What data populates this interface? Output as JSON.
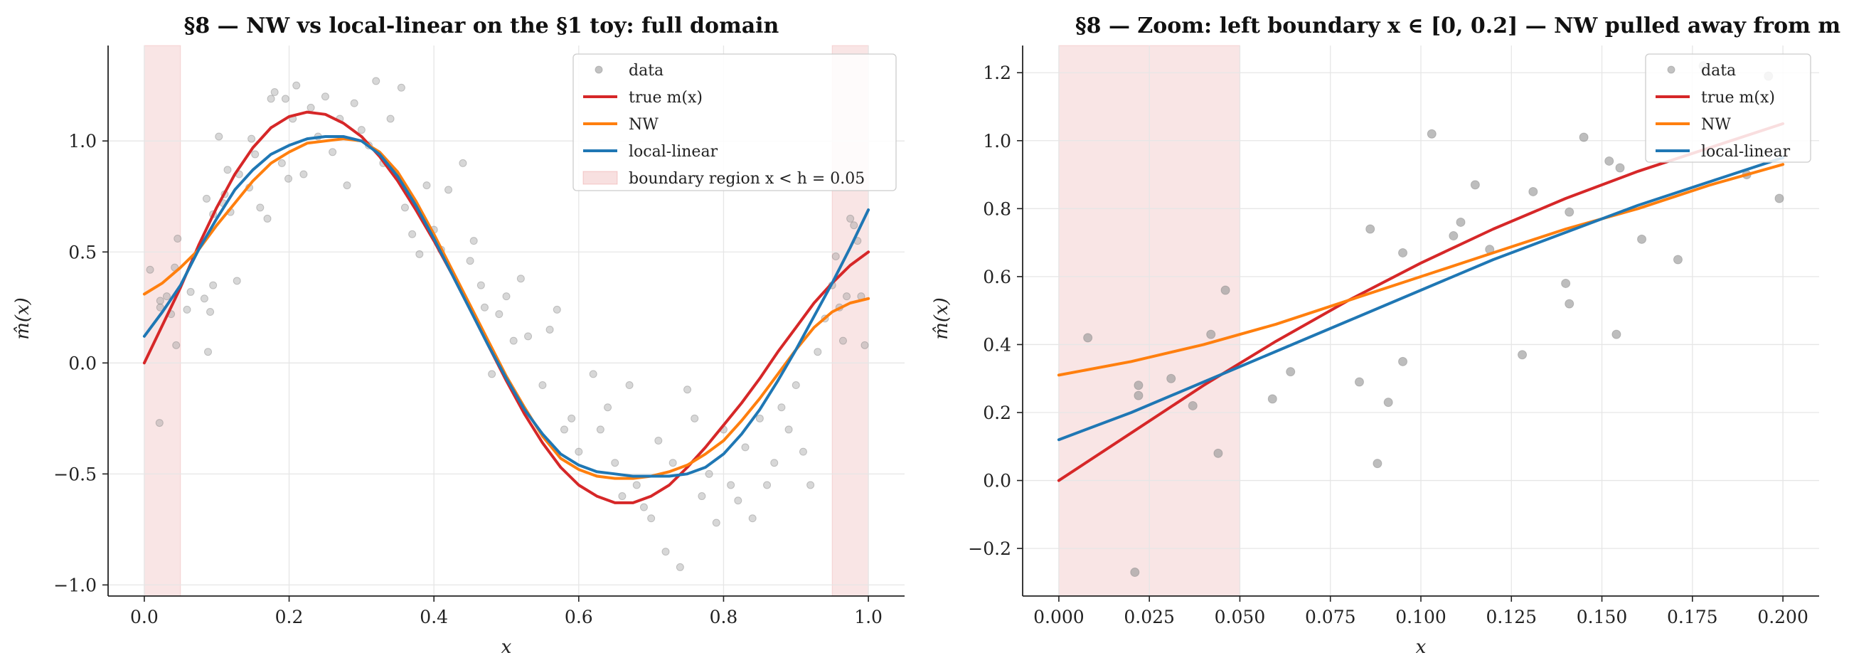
{
  "figure": {
    "colors": {
      "data": "#9a9a9a",
      "true": "#d62728",
      "nw": "#ff7f0e",
      "ll": "#1f77b4",
      "boundary": "#f4cccc",
      "grid": "#e6e6e6"
    }
  },
  "legend": {
    "data": "data",
    "true": "true m(x)",
    "nw": "NW",
    "ll": "local-linear",
    "boundary": "boundary region x < h = 0.05"
  },
  "chart_data": [
    {
      "type": "scatter",
      "title": "§8 — NW vs local-linear on the §1 toy: full domain",
      "xlabel": "x",
      "ylabel": "m̂(x)",
      "xlim": [
        -0.05,
        1.05
      ],
      "ylim": [
        -1.05,
        1.43
      ],
      "xticks": [
        "0.0",
        "0.2",
        "0.4",
        "0.6",
        "0.8",
        "1.0"
      ],
      "yticks": [
        "−1.0",
        "−0.5",
        "0.0",
        "0.5",
        "1.0"
      ],
      "grid": true,
      "legend_position": "top-right",
      "boundary_regions": [
        [
          0.0,
          0.05
        ],
        [
          0.95,
          1.0
        ]
      ],
      "series": [
        {
          "name": "data",
          "kind": "points",
          "points": [
            [
              0.008,
              0.42
            ],
            [
              0.021,
              -0.27
            ],
            [
              0.022,
              0.28
            ],
            [
              0.022,
              0.25
            ],
            [
              0.031,
              0.3
            ],
            [
              0.037,
              0.22
            ],
            [
              0.042,
              0.43
            ],
            [
              0.044,
              0.08
            ],
            [
              0.046,
              0.56
            ],
            [
              0.059,
              0.24
            ],
            [
              0.064,
              0.32
            ],
            [
              0.083,
              0.29
            ],
            [
              0.086,
              0.74
            ],
            [
              0.088,
              0.05
            ],
            [
              0.091,
              0.23
            ],
            [
              0.095,
              0.67
            ],
            [
              0.095,
              0.35
            ],
            [
              0.103,
              1.02
            ],
            [
              0.109,
              0.72
            ],
            [
              0.111,
              0.76
            ],
            [
              0.115,
              0.87
            ],
            [
              0.119,
              0.68
            ],
            [
              0.128,
              0.37
            ],
            [
              0.131,
              0.85
            ],
            [
              0.145,
              0.79
            ],
            [
              0.148,
              1.01
            ],
            [
              0.153,
              0.94
            ],
            [
              0.16,
              0.7
            ],
            [
              0.17,
              0.65
            ],
            [
              0.175,
              1.19
            ],
            [
              0.18,
              1.22
            ],
            [
              0.19,
              0.9
            ],
            [
              0.195,
              1.19
            ],
            [
              0.199,
              0.83
            ],
            [
              0.205,
              1.1
            ],
            [
              0.21,
              1.25
            ],
            [
              0.22,
              0.85
            ],
            [
              0.23,
              1.15
            ],
            [
              0.24,
              1.02
            ],
            [
              0.25,
              1.2
            ],
            [
              0.26,
              0.95
            ],
            [
              0.27,
              1.1
            ],
            [
              0.28,
              0.8
            ],
            [
              0.29,
              1.17
            ],
            [
              0.3,
              1.05
            ],
            [
              0.31,
              0.98
            ],
            [
              0.32,
              1.27
            ],
            [
              0.33,
              0.9
            ],
            [
              0.34,
              1.1
            ],
            [
              0.355,
              1.24
            ],
            [
              0.36,
              0.7
            ],
            [
              0.37,
              0.58
            ],
            [
              0.38,
              0.49
            ],
            [
              0.39,
              0.8
            ],
            [
              0.4,
              0.6
            ],
            [
              0.41,
              0.51
            ],
            [
              0.42,
              0.78
            ],
            [
              0.44,
              0.9
            ],
            [
              0.45,
              0.46
            ],
            [
              0.455,
              0.55
            ],
            [
              0.465,
              0.35
            ],
            [
              0.47,
              0.25
            ],
            [
              0.48,
              -0.05
            ],
            [
              0.49,
              0.22
            ],
            [
              0.5,
              0.3
            ],
            [
              0.51,
              0.1
            ],
            [
              0.52,
              0.38
            ],
            [
              0.53,
              0.12
            ],
            [
              0.55,
              -0.1
            ],
            [
              0.56,
              0.15
            ],
            [
              0.57,
              0.24
            ],
            [
              0.58,
              -0.3
            ],
            [
              0.59,
              -0.25
            ],
            [
              0.6,
              -0.4
            ],
            [
              0.62,
              -0.05
            ],
            [
              0.63,
              -0.3
            ],
            [
              0.64,
              -0.2
            ],
            [
              0.65,
              -0.45
            ],
            [
              0.66,
              -0.6
            ],
            [
              0.67,
              -0.1
            ],
            [
              0.68,
              -0.55
            ],
            [
              0.69,
              -0.65
            ],
            [
              0.7,
              -0.7
            ],
            [
              0.71,
              -0.35
            ],
            [
              0.72,
              -0.85
            ],
            [
              0.73,
              -0.45
            ],
            [
              0.74,
              -0.92
            ],
            [
              0.75,
              -0.12
            ],
            [
              0.76,
              -0.25
            ],
            [
              0.77,
              -0.6
            ],
            [
              0.78,
              -0.5
            ],
            [
              0.79,
              -0.72
            ],
            [
              0.8,
              -0.3
            ],
            [
              0.81,
              -0.55
            ],
            [
              0.82,
              -0.62
            ],
            [
              0.83,
              -0.38
            ],
            [
              0.84,
              -0.7
            ],
            [
              0.85,
              -0.25
            ],
            [
              0.86,
              -0.55
            ],
            [
              0.87,
              -0.45
            ],
            [
              0.88,
              -0.2
            ],
            [
              0.89,
              -0.3
            ],
            [
              0.9,
              -0.1
            ],
            [
              0.91,
              -0.4
            ],
            [
              0.92,
              -0.55
            ],
            [
              0.93,
              0.05
            ],
            [
              0.94,
              0.2
            ],
            [
              0.95,
              0.35
            ],
            [
              0.955,
              0.48
            ],
            [
              0.96,
              0.25
            ],
            [
              0.965,
              0.1
            ],
            [
              0.97,
              0.3
            ],
            [
              0.975,
              0.65
            ],
            [
              0.98,
              0.62
            ],
            [
              0.985,
              0.55
            ],
            [
              0.99,
              0.3
            ],
            [
              0.995,
              0.08
            ]
          ]
        },
        {
          "name": "true m(x)",
          "kind": "line",
          "x": [
            0,
            0.025,
            0.05,
            0.075,
            0.1,
            0.125,
            0.15,
            0.175,
            0.2,
            0.225,
            0.25,
            0.275,
            0.3,
            0.325,
            0.35,
            0.375,
            0.4,
            0.425,
            0.45,
            0.475,
            0.5,
            0.525,
            0.55,
            0.575,
            0.6,
            0.625,
            0.65,
            0.675,
            0.7,
            0.725,
            0.75,
            0.775,
            0.8,
            0.825,
            0.85,
            0.875,
            0.9,
            0.925,
            0.95,
            0.975,
            1.0
          ],
          "y": [
            0.0,
            0.17,
            0.34,
            0.53,
            0.7,
            0.85,
            0.97,
            1.06,
            1.11,
            1.13,
            1.12,
            1.08,
            1.02,
            0.93,
            0.82,
            0.69,
            0.55,
            0.4,
            0.24,
            0.08,
            -0.08,
            -0.23,
            -0.36,
            -0.47,
            -0.55,
            -0.6,
            -0.63,
            -0.63,
            -0.6,
            -0.55,
            -0.47,
            -0.38,
            -0.28,
            -0.18,
            -0.07,
            0.05,
            0.16,
            0.27,
            0.36,
            0.44,
            0.5
          ]
        },
        {
          "name": "NW",
          "kind": "line",
          "x": [
            0,
            0.025,
            0.05,
            0.075,
            0.1,
            0.125,
            0.15,
            0.175,
            0.2,
            0.225,
            0.25,
            0.275,
            0.3,
            0.325,
            0.35,
            0.375,
            0.4,
            0.425,
            0.45,
            0.475,
            0.5,
            0.525,
            0.55,
            0.575,
            0.6,
            0.625,
            0.65,
            0.675,
            0.7,
            0.725,
            0.75,
            0.775,
            0.8,
            0.825,
            0.85,
            0.875,
            0.9,
            0.925,
            0.95,
            0.975,
            1.0
          ],
          "y": [
            0.31,
            0.36,
            0.43,
            0.51,
            0.62,
            0.72,
            0.82,
            0.9,
            0.95,
            0.99,
            1.0,
            1.01,
            1.0,
            0.95,
            0.86,
            0.73,
            0.58,
            0.42,
            0.26,
            0.1,
            -0.06,
            -0.2,
            -0.33,
            -0.43,
            -0.48,
            -0.51,
            -0.52,
            -0.52,
            -0.51,
            -0.49,
            -0.46,
            -0.41,
            -0.35,
            -0.26,
            -0.16,
            -0.05,
            0.06,
            0.16,
            0.23,
            0.27,
            0.29
          ]
        },
        {
          "name": "local-linear",
          "kind": "line",
          "x": [
            0,
            0.025,
            0.05,
            0.075,
            0.1,
            0.125,
            0.15,
            0.175,
            0.2,
            0.225,
            0.25,
            0.275,
            0.3,
            0.325,
            0.35,
            0.375,
            0.4,
            0.425,
            0.45,
            0.475,
            0.5,
            0.525,
            0.55,
            0.575,
            0.6,
            0.625,
            0.65,
            0.675,
            0.7,
            0.725,
            0.75,
            0.775,
            0.8,
            0.825,
            0.85,
            0.875,
            0.9,
            0.925,
            0.95,
            0.975,
            1.0
          ],
          "y": [
            0.12,
            0.23,
            0.35,
            0.51,
            0.65,
            0.78,
            0.87,
            0.94,
            0.98,
            1.01,
            1.02,
            1.02,
            1.0,
            0.94,
            0.84,
            0.71,
            0.56,
            0.4,
            0.24,
            0.08,
            -0.07,
            -0.21,
            -0.32,
            -0.41,
            -0.46,
            -0.49,
            -0.5,
            -0.51,
            -0.51,
            -0.51,
            -0.5,
            -0.47,
            -0.41,
            -0.32,
            -0.21,
            -0.08,
            0.06,
            0.21,
            0.36,
            0.52,
            0.69
          ]
        }
      ]
    },
    {
      "type": "scatter",
      "title": "§8 — Zoom: left boundary x ∈ [0, 0.2] — NW pulled away from m",
      "xlabel": "x",
      "ylabel": "m̂(x)",
      "xlim": [
        -0.01,
        0.21
      ],
      "ylim": [
        -0.34,
        1.28
      ],
      "xticks": [
        "0.000",
        "0.025",
        "0.050",
        "0.075",
        "0.100",
        "0.125",
        "0.150",
        "0.175",
        "0.200"
      ],
      "yticks": [
        "−0.2",
        "0.0",
        "0.2",
        "0.4",
        "0.6",
        "0.8",
        "1.0",
        "1.2"
      ],
      "grid": true,
      "legend_position": "top-right",
      "boundary_regions": [
        [
          0.0,
          0.05
        ]
      ],
      "series": [
        {
          "name": "data",
          "kind": "points",
          "points": [
            [
              0.008,
              0.42
            ],
            [
              0.021,
              -0.27
            ],
            [
              0.022,
              0.28
            ],
            [
              0.022,
              0.25
            ],
            [
              0.031,
              0.3
            ],
            [
              0.037,
              0.22
            ],
            [
              0.042,
              0.43
            ],
            [
              0.044,
              0.08
            ],
            [
              0.046,
              0.56
            ],
            [
              0.059,
              0.24
            ],
            [
              0.064,
              0.32
            ],
            [
              0.083,
              0.29
            ],
            [
              0.086,
              0.74
            ],
            [
              0.088,
              0.05
            ],
            [
              0.091,
              0.23
            ],
            [
              0.095,
              0.67
            ],
            [
              0.095,
              0.35
            ],
            [
              0.103,
              1.02
            ],
            [
              0.109,
              0.72
            ],
            [
              0.111,
              0.76
            ],
            [
              0.115,
              0.87
            ],
            [
              0.119,
              0.68
            ],
            [
              0.128,
              0.37
            ],
            [
              0.131,
              0.85
            ],
            [
              0.14,
              0.58
            ],
            [
              0.141,
              0.52
            ],
            [
              0.141,
              0.79
            ],
            [
              0.145,
              1.01
            ],
            [
              0.152,
              0.94
            ],
            [
              0.154,
              0.43
            ],
            [
              0.155,
              0.92
            ],
            [
              0.161,
              0.71
            ],
            [
              0.171,
              0.65
            ],
            [
              0.178,
              1.22
            ],
            [
              0.19,
              0.9
            ],
            [
              0.196,
              1.19
            ],
            [
              0.199,
              0.83
            ]
          ]
        },
        {
          "name": "true m(x)",
          "kind": "line",
          "x": [
            0,
            0.02,
            0.04,
            0.06,
            0.08,
            0.1,
            0.12,
            0.14,
            0.16,
            0.18,
            0.2
          ],
          "y": [
            0.0,
            0.14,
            0.28,
            0.41,
            0.53,
            0.64,
            0.74,
            0.83,
            0.91,
            0.98,
            1.05
          ]
        },
        {
          "name": "NW",
          "kind": "line",
          "x": [
            0,
            0.02,
            0.04,
            0.06,
            0.08,
            0.1,
            0.12,
            0.14,
            0.16,
            0.18,
            0.2
          ],
          "y": [
            0.31,
            0.35,
            0.4,
            0.46,
            0.53,
            0.6,
            0.67,
            0.74,
            0.8,
            0.87,
            0.93
          ]
        },
        {
          "name": "local-linear",
          "kind": "line",
          "x": [
            0,
            0.02,
            0.04,
            0.06,
            0.08,
            0.1,
            0.12,
            0.14,
            0.16,
            0.18,
            0.2
          ],
          "y": [
            0.12,
            0.2,
            0.29,
            0.38,
            0.47,
            0.56,
            0.65,
            0.73,
            0.81,
            0.88,
            0.95
          ]
        }
      ]
    }
  ]
}
